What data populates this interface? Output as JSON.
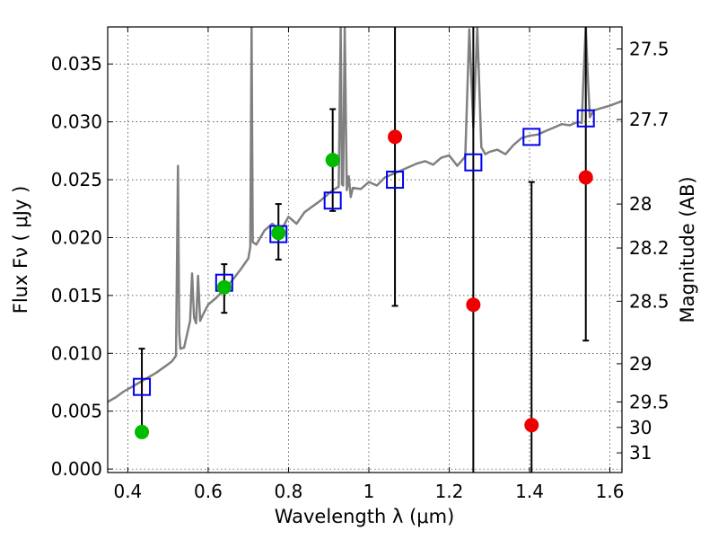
{
  "chart_data": {
    "type": "scatter",
    "xlabel": "Wavelength  λ (μm)",
    "ylabel": "Flux  Fν  ( μJy )",
    "y2label": "Magnitude (AB)",
    "xlim": [
      0.35,
      1.63
    ],
    "ylim": [
      -0.0003,
      0.0382
    ],
    "grid": true,
    "x_ticks": [
      0.4,
      0.6,
      0.8,
      1.0,
      1.2,
      1.4,
      1.6
    ],
    "x_tick_labels": [
      "0.4",
      "0.6",
      "0.8",
      "1",
      "1.2",
      "1.4",
      "1.6"
    ],
    "y_ticks": [
      0.0,
      0.005,
      0.01,
      0.015,
      0.02,
      0.025,
      0.03,
      0.035
    ],
    "y_tick_labels": [
      "0.000",
      "0.005",
      "0.010",
      "0.015",
      "0.020",
      "0.025",
      "0.030",
      "0.035"
    ],
    "y2_ticks": [
      {
        "label": "27.5",
        "flux": 0.0363
      },
      {
        "label": "27.7",
        "flux": 0.0302
      },
      {
        "label": "28",
        "flux": 0.0229
      },
      {
        "label": "28.2",
        "flux": 0.0191
      },
      {
        "label": "28.5",
        "flux": 0.0145
      },
      {
        "label": "29",
        "flux": 0.0091
      },
      {
        "label": "29.5",
        "flux": 0.0058
      },
      {
        "label": "30",
        "flux": 0.0036
      },
      {
        "label": "31",
        "flux": 0.0014
      }
    ],
    "spectrum": {
      "color": "#808080",
      "x": [
        0.35,
        0.37,
        0.39,
        0.41,
        0.43,
        0.45,
        0.47,
        0.49,
        0.51,
        0.52,
        0.525,
        0.528,
        0.531,
        0.54,
        0.555,
        0.56,
        0.565,
        0.57,
        0.575,
        0.58,
        0.585,
        0.6,
        0.62,
        0.64,
        0.66,
        0.68,
        0.7,
        0.705,
        0.708,
        0.711,
        0.72,
        0.74,
        0.76,
        0.78,
        0.8,
        0.82,
        0.84,
        0.86,
        0.88,
        0.9,
        0.915,
        0.925,
        0.93,
        0.933,
        0.936,
        0.94,
        0.945,
        0.95,
        0.955,
        0.96,
        0.98,
        1.0,
        1.02,
        1.04,
        1.06,
        1.08,
        1.1,
        1.12,
        1.14,
        1.16,
        1.18,
        1.2,
        1.22,
        1.24,
        1.25,
        1.26,
        1.27,
        1.28,
        1.29,
        1.3,
        1.32,
        1.34,
        1.36,
        1.38,
        1.4,
        1.42,
        1.44,
        1.46,
        1.48,
        1.5,
        1.52,
        1.53,
        1.535,
        1.54,
        1.545,
        1.55,
        1.56,
        1.58,
        1.6,
        1.63
      ],
      "y": [
        0.0058,
        0.0062,
        0.0067,
        0.0071,
        0.0075,
        0.0079,
        0.0083,
        0.0088,
        0.0093,
        0.0098,
        0.0262,
        0.0118,
        0.0104,
        0.0105,
        0.0128,
        0.0169,
        0.0131,
        0.0126,
        0.0167,
        0.0128,
        0.0132,
        0.0142,
        0.0148,
        0.0155,
        0.0163,
        0.0172,
        0.0182,
        0.0192,
        0.0382,
        0.0196,
        0.0194,
        0.0206,
        0.0212,
        0.0205,
        0.0218,
        0.0212,
        0.0222,
        0.0227,
        0.0232,
        0.0238,
        0.0242,
        0.0244,
        0.0382,
        0.0246,
        0.0245,
        0.0382,
        0.0241,
        0.0253,
        0.0235,
        0.0243,
        0.0242,
        0.0248,
        0.0245,
        0.0252,
        0.0255,
        0.0258,
        0.0261,
        0.0264,
        0.0266,
        0.0263,
        0.0269,
        0.0271,
        0.0262,
        0.027,
        0.038,
        0.0295,
        0.0382,
        0.0278,
        0.0272,
        0.0274,
        0.0276,
        0.0272,
        0.028,
        0.0286,
        0.0288,
        0.0289,
        0.0292,
        0.0295,
        0.0298,
        0.0297,
        0.03,
        0.0299,
        0.0345,
        0.0382,
        0.034,
        0.0304,
        0.031,
        0.0312,
        0.0314,
        0.0318
      ]
    },
    "series": [
      {
        "marker": "open-square",
        "color": "#0000ee",
        "points": [
          {
            "x": 0.435,
            "y": 0.0071
          },
          {
            "x": 0.64,
            "y": 0.0161
          },
          {
            "x": 0.775,
            "y": 0.0203
          },
          {
            "x": 0.91,
            "y": 0.0232
          },
          {
            "x": 1.065,
            "y": 0.025
          },
          {
            "x": 1.26,
            "y": 0.0265
          },
          {
            "x": 1.405,
            "y": 0.0287
          },
          {
            "x": 1.54,
            "y": 0.0303
          }
        ]
      },
      {
        "marker": "filled-circle",
        "color": "#00bb00",
        "points": [
          {
            "x": 0.435,
            "y": 0.0032,
            "yerr_low": 0.0032,
            "yerr_high": 0.0104
          },
          {
            "x": 0.64,
            "y": 0.0157,
            "yerr_low": 0.0135,
            "yerr_high": 0.0177
          },
          {
            "x": 0.775,
            "y": 0.0204,
            "yerr_low": 0.0181,
            "yerr_high": 0.0229
          },
          {
            "x": 0.91,
            "y": 0.0267,
            "yerr_low": 0.0223,
            "yerr_high": 0.0311
          }
        ]
      },
      {
        "marker": "filled-circle",
        "color": "#ee0000",
        "points": [
          {
            "x": 1.065,
            "y": 0.0287,
            "yerr_low": 0.0141,
            "yerr_high": 0.0382
          },
          {
            "x": 1.26,
            "y": 0.0142,
            "yerr_low": -0.0003,
            "yerr_high": 0.0382
          },
          {
            "x": 1.405,
            "y": 0.0038,
            "yerr_low": -0.0003,
            "yerr_high": 0.0248
          },
          {
            "x": 1.54,
            "y": 0.0252,
            "yerr_low": 0.0111,
            "yerr_high": 0.0382
          }
        ]
      }
    ]
  }
}
